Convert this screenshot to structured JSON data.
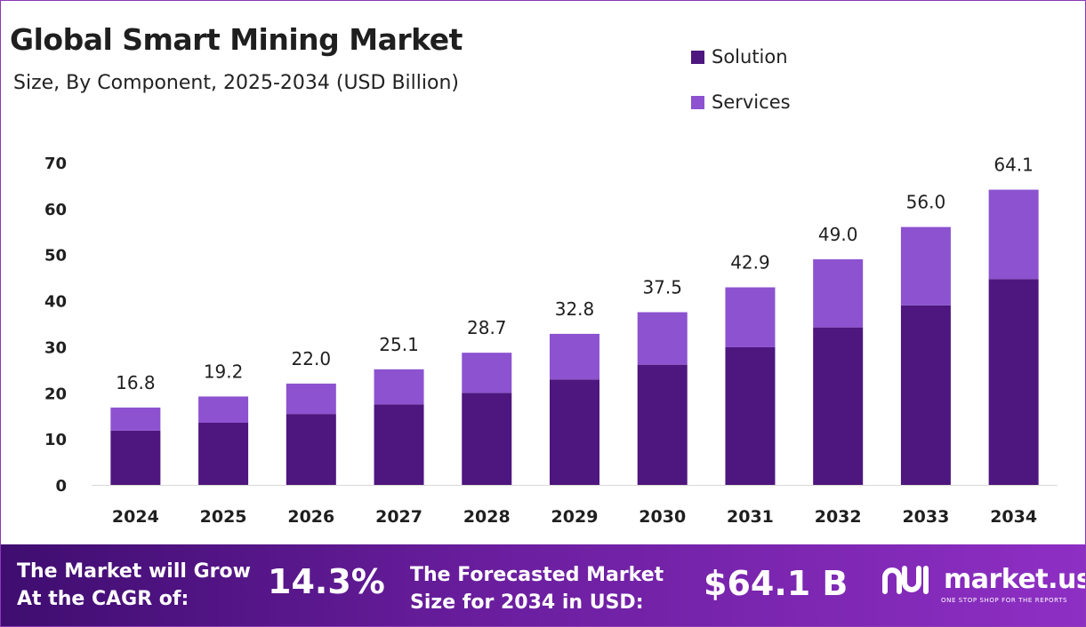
{
  "header": {
    "title": "Global Smart Mining Market",
    "subtitle": "Size, By Component, 2025-2034 (USD Billion)"
  },
  "legend": [
    {
      "label": "Solution",
      "color": "#4e167f"
    },
    {
      "label": "Services",
      "color": "#8c52d0"
    }
  ],
  "chart_data": {
    "type": "bar",
    "stacked": true,
    "categories": [
      "2024",
      "2025",
      "2026",
      "2027",
      "2028",
      "2029",
      "2030",
      "2031",
      "2032",
      "2033",
      "2034"
    ],
    "series": [
      {
        "name": "Solution",
        "color": "#4e167f",
        "values": [
          11.8,
          13.5,
          15.4,
          17.5,
          20.0,
          22.9,
          26.1,
          29.9,
          34.2,
          39.0,
          44.7
        ]
      },
      {
        "name": "Services",
        "color": "#8c52d0",
        "values": [
          5.0,
          5.7,
          6.6,
          7.6,
          8.7,
          9.9,
          11.4,
          13.0,
          14.8,
          17.0,
          19.4
        ]
      }
    ],
    "totals": [
      16.8,
      19.2,
      22.0,
      25.1,
      28.7,
      32.8,
      37.5,
      42.9,
      49.0,
      56.0,
      64.1
    ],
    "total_labels": [
      "16.8",
      "19.2",
      "22.0",
      "25.1",
      "28.7",
      "32.8",
      "37.5",
      "42.9",
      "49.0",
      "56.0",
      "64.1"
    ],
    "yticks": [
      0,
      10,
      20,
      30,
      40,
      50,
      60,
      70
    ],
    "ylim": [
      0,
      70
    ],
    "grid": false,
    "legend_position": "top-right"
  },
  "footer": {
    "cagr_label_line1": "The Market will Grow",
    "cagr_label_line2": "At the CAGR of:",
    "cagr_value": "14.3%",
    "forecast_label_line1": "The Forecasted Market",
    "forecast_label_line2": "Size for 2034 in USD:",
    "forecast_value": "$64.1 B",
    "brand_name": "market.us",
    "brand_tagline": "ONE STOP SHOP FOR THE REPORTS",
    "brand_icon": "market-us-logo-icon"
  }
}
